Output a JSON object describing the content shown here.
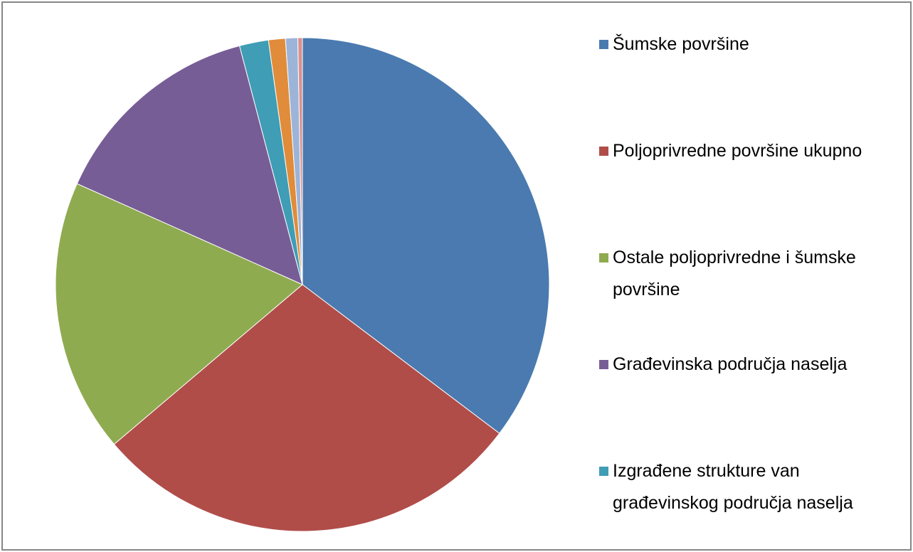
{
  "chart_data": {
    "type": "pie",
    "categories": [
      "Šumske površine",
      "Poljoprivredne površine ukupno",
      "Ostale poljoprivredne i šumske površine",
      "Građevinska područja naselja",
      "Izgrađene strukture van građevinskog područja naselja",
      null,
      null,
      null
    ],
    "values": [
      35.3,
      28.5,
      17.9,
      14.2,
      1.9,
      1.1,
      0.8,
      0.3
    ],
    "colors": [
      "#4a7aaf",
      "#b04d49",
      "#8fab50",
      "#775d96",
      "#3f9db5",
      "#e08c3a",
      "#9db4d9",
      "#d99290"
    ],
    "legend": "right"
  }
}
